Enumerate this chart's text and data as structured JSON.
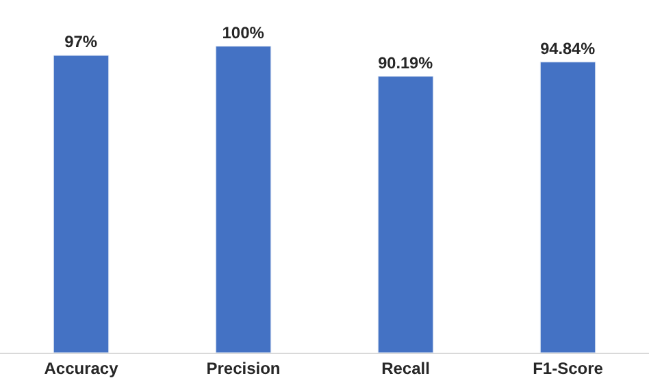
{
  "chart_data": {
    "type": "bar",
    "categories": [
      "Accuracy",
      "Precision",
      "Recall",
      "F1-Score"
    ],
    "values": [
      97,
      100,
      90.19,
      94.84
    ],
    "value_labels": [
      "97%",
      "100%",
      "90.19%",
      "94.84%"
    ],
    "color": "#4472c4",
    "tick_labels": "x"
  }
}
